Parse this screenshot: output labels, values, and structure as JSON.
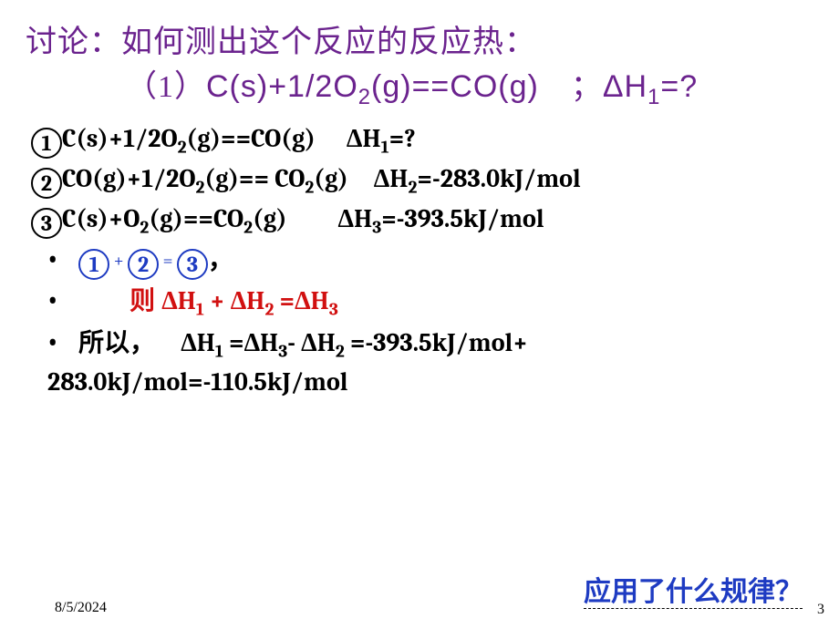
{
  "colors": {
    "purple": "#6b238e",
    "blue": "#1e3bc2",
    "red": "#d11010",
    "black": "#000000",
    "background": "#ffffff"
  },
  "fonts": {
    "title_size_pt": 26,
    "body_size_pt": 21,
    "footer_size_pt": 12
  },
  "title": {
    "line1": "讨论：如何测出这个反应的反应热：",
    "line2_prefix": "（1）",
    "line2_eq_html": "C(s)+1/2O<sub>2</sub>(g)==CO(g) ；ΔH<sub>1</sub>=?"
  },
  "equations": [
    {
      "num": "1",
      "html": "C(s)+1/2O<sub>2</sub>(g)==CO(g)  ΔH<sub>1</sub>=?"
    },
    {
      "num": "2",
      "html": "CO(g)+1/2O<sub>2</sub>(g)== CO<sub>2</sub>(g) ΔH<sub>2</sub>=-283.0kJ/mol"
    },
    {
      "num": "3",
      "html": "C(s)+O<sub>2</sub>(g)==CO<sub>2</sub>(g)  ΔH<sub>3</sub>=-393.5kJ/mol"
    }
  ],
  "combine": {
    "a": "1",
    "b": "2",
    "c": "3",
    "comma": "，",
    "plus": " + ",
    "eq": " = "
  },
  "hess_prefix": "则 ",
  "hess_html": "ΔH<sub>1</sub> + ΔH<sub>2</sub> =ΔH<sub>3</sub>",
  "result_prefix": "所以，",
  "result_html": " ΔH<sub>1</sub> =ΔH<sub>3</sub>- ΔH<sub>2</sub> =-393.5kJ/mol+ 283.0kJ/mol=-110.5kJ/mol",
  "question": "应用了什么规律？",
  "footer": {
    "date": "8/5/2024",
    "page": "3"
  }
}
